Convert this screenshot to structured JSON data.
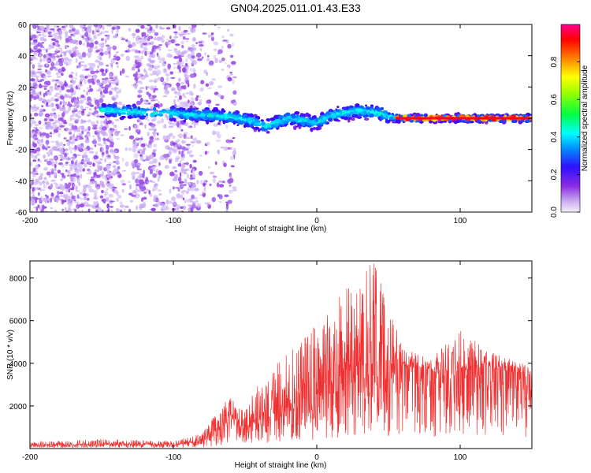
{
  "figure": {
    "title": "GN04.2025.011.01.43.E33"
  },
  "chart_data": [
    {
      "type": "heatmap",
      "xlabel": "Height of straight line (km)",
      "ylabel": "Frequency (Hz)",
      "xlim": [
        -200,
        150
      ],
      "ylim": [
        -60,
        60
      ],
      "xticks": [
        -200,
        -100,
        0,
        100
      ],
      "yticks": [
        -60,
        -40,
        -20,
        0,
        20,
        40,
        60
      ],
      "colorbar": {
        "label": "Normalized spectral amplitude",
        "range": [
          0,
          1
        ],
        "ticks": [
          0.0,
          0.2,
          0.4,
          0.6,
          0.8
        ],
        "tick_labels": [
          "0.0",
          "0.2",
          "0.4",
          "0.6",
          "0.8"
        ],
        "colormap": [
          "#e8e0f8",
          "#b080f0",
          "#8a2be2",
          "#4000ff",
          "#0080ff",
          "#00ffff",
          "#00ff00",
          "#ffff00",
          "#ff8000",
          "#ff0000",
          "#ff0090"
        ]
      },
      "ridge_frequency": [
        {
          "x": -145,
          "y": 5
        },
        {
          "x": -130,
          "y": 4
        },
        {
          "x": -100,
          "y": 3
        },
        {
          "x": -80,
          "y": 2
        },
        {
          "x": -60,
          "y": 1
        },
        {
          "x": -45,
          "y": -2
        },
        {
          "x": -35,
          "y": -5
        },
        {
          "x": -20,
          "y": 0
        },
        {
          "x": 0,
          "y": -3
        },
        {
          "x": 10,
          "y": 2
        },
        {
          "x": 30,
          "y": 5
        },
        {
          "x": 45,
          "y": 3
        },
        {
          "x": 55,
          "y": 0
        },
        {
          "x": 70,
          "y": 0
        },
        {
          "x": 90,
          "y": 0
        },
        {
          "x": 110,
          "y": 0
        },
        {
          "x": 130,
          "y": 0
        },
        {
          "x": 150,
          "y": 0
        }
      ],
      "max_amplitude_segment": {
        "x_start": 55,
        "x_end": 150,
        "y": 0,
        "value": 1.0
      }
    },
    {
      "type": "line",
      "xlabel": "Height of straight line (km)",
      "ylabel": "SNR (10 * v/v)",
      "xlim": [
        -200,
        150
      ],
      "ylim": [
        0,
        8800
      ],
      "xticks": [
        -200,
        -100,
        0,
        100
      ],
      "yticks": [
        2000,
        4000,
        6000,
        8000
      ],
      "line_color": "#f03030",
      "envelope": [
        {
          "x": -200,
          "mean": 150,
          "max": 300
        },
        {
          "x": -150,
          "mean": 200,
          "max": 450
        },
        {
          "x": -100,
          "mean": 180,
          "max": 350
        },
        {
          "x": -80,
          "mean": 350,
          "max": 700
        },
        {
          "x": -70,
          "mean": 800,
          "max": 1700
        },
        {
          "x": -60,
          "mean": 1400,
          "max": 2500
        },
        {
          "x": -50,
          "mean": 900,
          "max": 1800
        },
        {
          "x": -40,
          "mean": 1300,
          "max": 3200
        },
        {
          "x": -20,
          "mean": 2000,
          "max": 4500
        },
        {
          "x": 0,
          "mean": 2800,
          "max": 6000
        },
        {
          "x": 20,
          "mean": 3500,
          "max": 7500
        },
        {
          "x": 40,
          "mean": 4000,
          "max": 8800
        },
        {
          "x": 60,
          "mean": 3900,
          "max": 4700
        },
        {
          "x": 80,
          "mean": 3700,
          "max": 4200
        },
        {
          "x": 90,
          "mean": 3400,
          "max": 5000
        },
        {
          "x": 100,
          "mean": 3700,
          "max": 5600
        },
        {
          "x": 120,
          "mean": 3800,
          "max": 4600
        },
        {
          "x": 150,
          "mean": 3400,
          "max": 3800
        }
      ]
    }
  ]
}
